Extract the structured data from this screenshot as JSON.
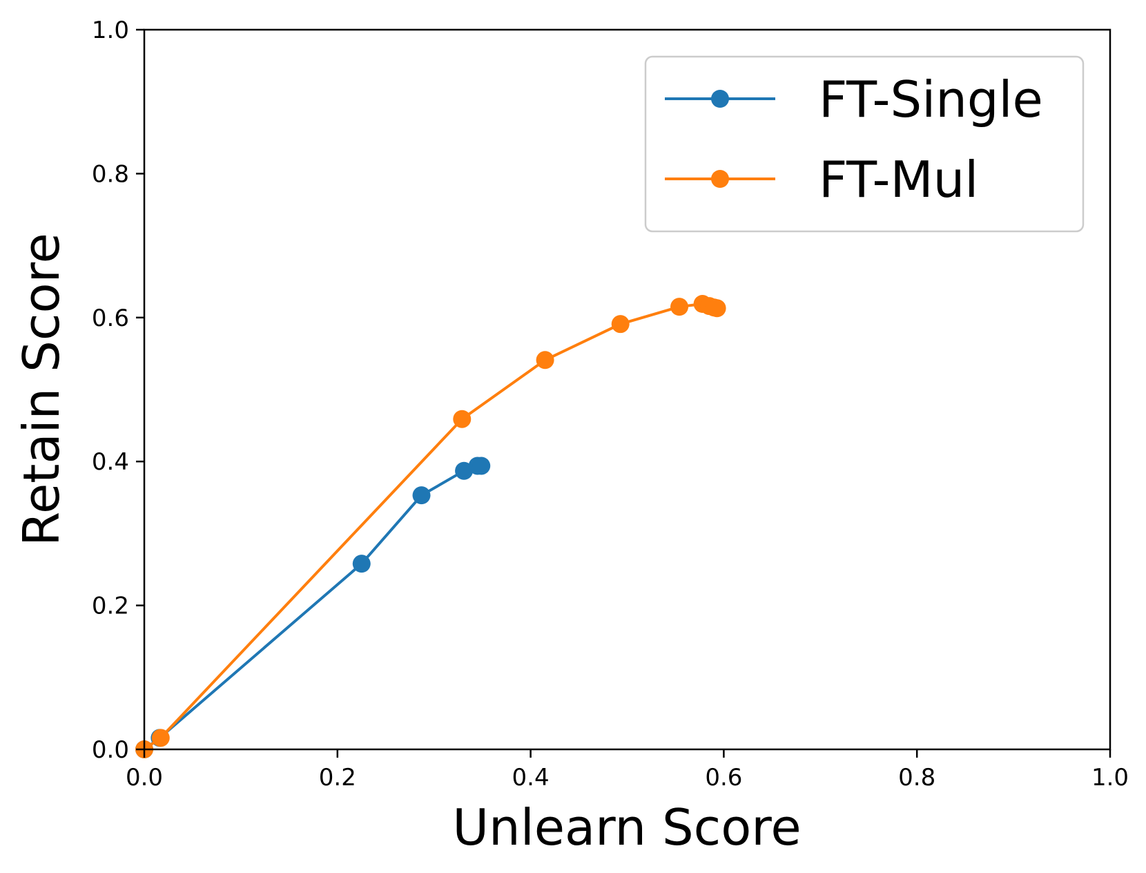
{
  "chart_data": {
    "type": "line",
    "xlabel": "Unlearn Score",
    "ylabel": "Retain Score",
    "xlim": [
      0.0,
      1.0
    ],
    "ylim": [
      0.0,
      1.0
    ],
    "xticks": [
      "0.0",
      "0.2",
      "0.4",
      "0.6",
      "0.8",
      "1.0"
    ],
    "yticks": [
      "0.0",
      "0.2",
      "0.4",
      "0.6",
      "0.8",
      "1.0"
    ],
    "grid": false,
    "legend_position": "top-right",
    "series": [
      {
        "name": "FT-Single",
        "color": "#1f77b4",
        "points": [
          [
            0.0,
            0.0
          ],
          [
            0.016,
            0.016
          ],
          [
            0.225,
            0.258
          ],
          [
            0.287,
            0.353
          ],
          [
            0.331,
            0.387
          ],
          [
            0.345,
            0.394
          ],
          [
            0.349,
            0.394
          ]
        ]
      },
      {
        "name": "FT-Mul",
        "color": "#ff7f0e",
        "points": [
          [
            0.0,
            0.0
          ],
          [
            0.017,
            0.016
          ],
          [
            0.329,
            0.459
          ],
          [
            0.415,
            0.541
          ],
          [
            0.493,
            0.591
          ],
          [
            0.554,
            0.615
          ],
          [
            0.578,
            0.619
          ],
          [
            0.585,
            0.616
          ],
          [
            0.59,
            0.614
          ],
          [
            0.593,
            0.613
          ]
        ]
      }
    ]
  }
}
